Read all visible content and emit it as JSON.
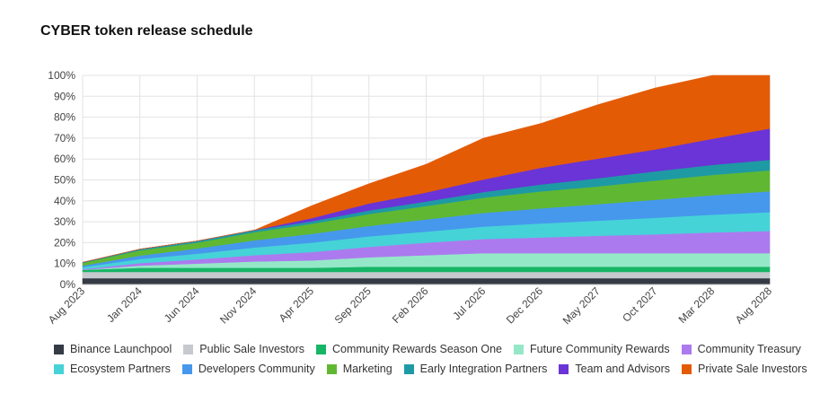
{
  "title": "CYBER token release schedule",
  "chart_data": {
    "type": "area",
    "stacked": true,
    "title": "CYBER token release schedule",
    "xlabel": "",
    "ylabel": "",
    "ylim": [
      0,
      100
    ],
    "y_ticks": [
      "0%",
      "10%",
      "20%",
      "30%",
      "40%",
      "50%",
      "60%",
      "70%",
      "80%",
      "90%",
      "100%"
    ],
    "x_ticks": [
      "Aug 2023",
      "Jan 2024",
      "Jun 2024",
      "Nov 2024",
      "Apr 2025",
      "Sep 2025",
      "Feb 2026",
      "Jul 2026",
      "Dec 2026",
      "May 2027",
      "Oct 2027",
      "Mar 2028",
      "Aug 2028"
    ],
    "grid": true,
    "legend_position": "bottom",
    "x": [
      "Aug 2023",
      "Jan 2024",
      "Jun 2024",
      "Nov 2024",
      "Apr 2025",
      "Sep 2025",
      "Feb 2026",
      "Jul 2026",
      "Dec 2026",
      "May 2027",
      "Oct 2027",
      "Mar 2028",
      "Aug 2028"
    ],
    "series": [
      {
        "name": "Binance Launchpool",
        "color": "#353b45",
        "values": [
          3,
          3,
          3,
          3,
          3,
          3,
          3,
          3,
          3,
          3,
          3,
          3,
          3
        ]
      },
      {
        "name": "Public Sale Investors",
        "color": "#c6c9ce",
        "values": [
          3,
          3,
          3,
          3,
          3,
          3,
          3,
          3,
          3,
          3,
          3,
          3,
          3
        ]
      },
      {
        "name": "Community Rewards Season One",
        "color": "#17b566",
        "values": [
          1,
          2,
          2,
          2,
          2,
          2.5,
          2.5,
          2.5,
          2.5,
          2.5,
          2.5,
          2.5,
          2.5
        ]
      },
      {
        "name": "Future Community Rewards",
        "color": "#94e8c8",
        "values": [
          0,
          1,
          2,
          3,
          3.5,
          4.5,
          5.5,
          6.5,
          6.5,
          6.5,
          6.5,
          6.5,
          6.5
        ]
      },
      {
        "name": "Community Treasury",
        "color": "#ac7aef",
        "values": [
          0.3,
          1.2,
          2,
          3,
          4,
          5,
          6,
          6.7,
          7.5,
          8.3,
          9,
          9.9,
          10.6
        ]
      },
      {
        "name": "Ecosystem Partners",
        "color": "#45d3d8",
        "values": [
          1,
          2,
          2.7,
          3.7,
          4.5,
          5,
          5.3,
          6,
          6.7,
          7.2,
          7.9,
          8.5,
          9
        ]
      },
      {
        "name": "Developers Community",
        "color": "#4698ec",
        "values": [
          0.7,
          1.6,
          2.5,
          3.4,
          4.2,
          5,
          5.8,
          6.5,
          7.2,
          7.9,
          8.6,
          9.3,
          10
        ]
      },
      {
        "name": "Marketing",
        "color": "#60b832",
        "values": [
          1.3,
          2.5,
          2.8,
          3.9,
          4.8,
          5.7,
          6.4,
          7.3,
          8.1,
          8.5,
          9.2,
          9.7,
          10
        ]
      },
      {
        "name": "Early Integration Partners",
        "color": "#1e9aa4",
        "values": [
          0.3,
          0.6,
          0.8,
          1,
          1.2,
          1.7,
          2.2,
          2.7,
          3.3,
          3.9,
          4.4,
          4.8,
          5
        ]
      },
      {
        "name": "Team and Advisors",
        "color": "#6a34d6",
        "values": [
          0,
          0,
          0,
          0,
          1.5,
          3.3,
          4.3,
          6,
          8,
          9.4,
          10.5,
          12.5,
          15
        ]
      },
      {
        "name": "Private Sale Investors",
        "color": "#e45b06",
        "values": [
          0,
          0,
          0,
          0,
          6,
          9.5,
          13.5,
          19.8,
          21.2,
          25.8,
          29.4,
          30.3,
          25.4
        ]
      }
    ]
  }
}
